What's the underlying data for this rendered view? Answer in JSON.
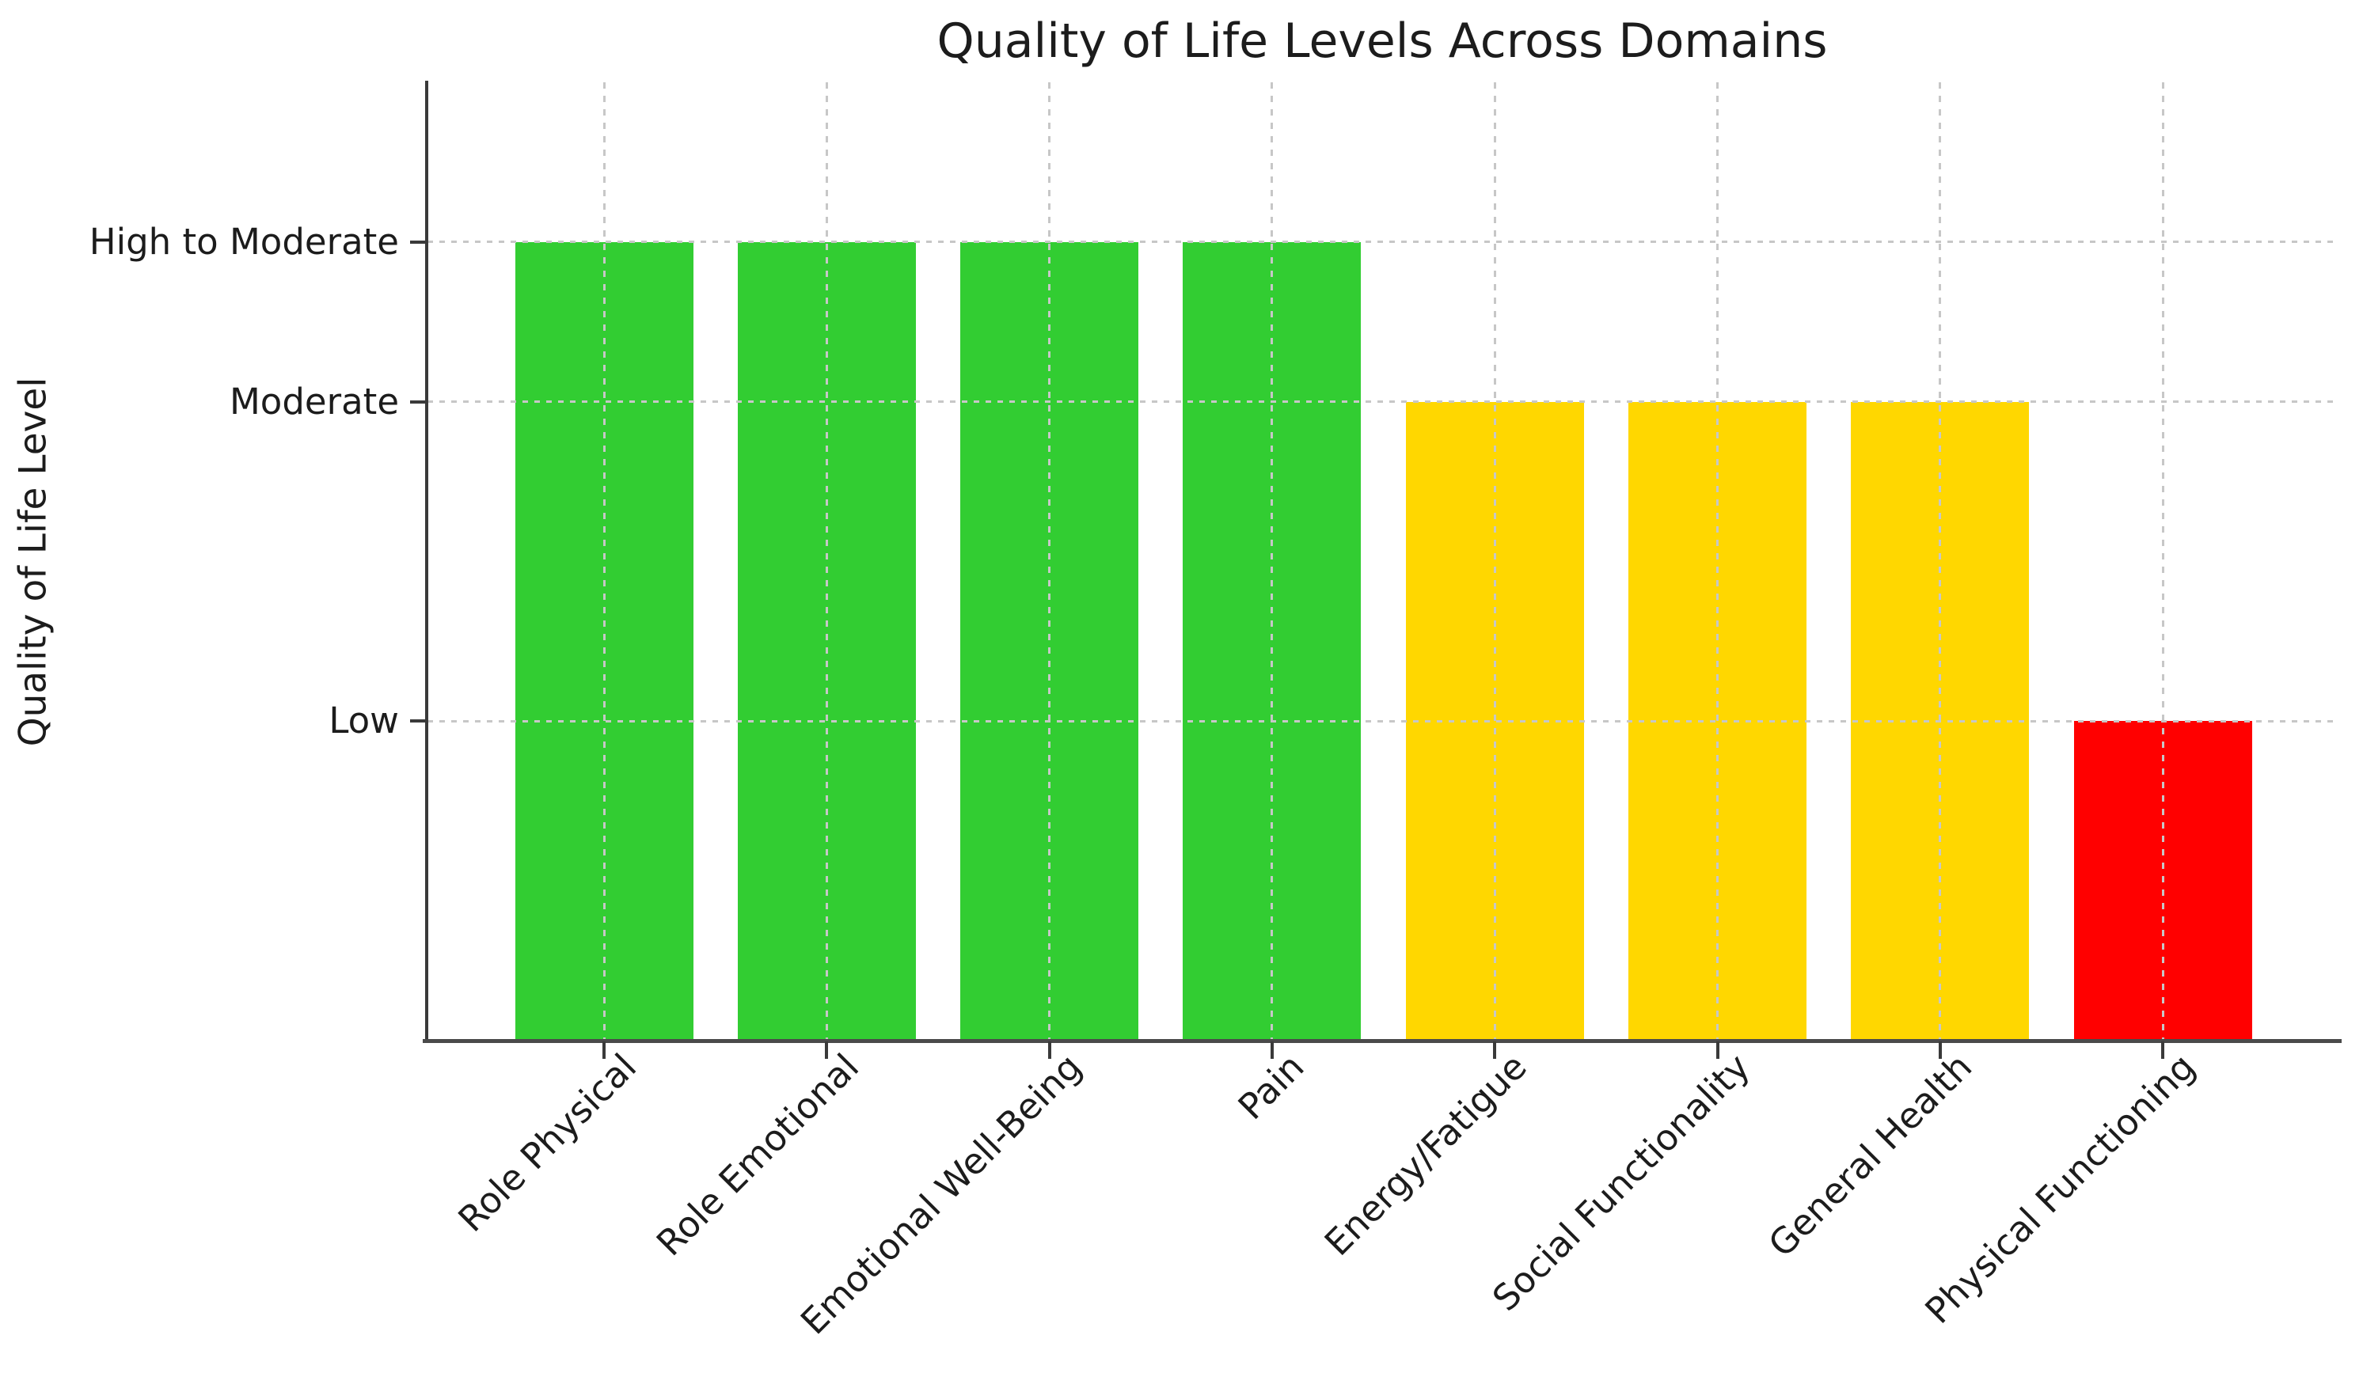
{
  "figure": {
    "background": "#ffffff",
    "text_color": "#1c1c1c",
    "spine_color": "#3a3a3a",
    "grid_color": "#c7c7c7"
  },
  "chart_data": {
    "type": "bar",
    "title": "Quality of Life Levels Across Domains",
    "xlabel": "",
    "ylabel": "Quality of Life Level",
    "categories": [
      "Role Physical",
      "Role Emotional",
      "Emotional Well-Being",
      "Pain",
      "Energy/Fatigue",
      "Social Functionality",
      "General Health",
      "Physical Functioning"
    ],
    "values": [
      2.5,
      2.5,
      2.5,
      2.5,
      2,
      2,
      2,
      1
    ],
    "levels": [
      "High to Moderate",
      "High to Moderate",
      "High to Moderate",
      "High to Moderate",
      "Moderate",
      "Moderate",
      "Moderate",
      "Low"
    ],
    "bar_colors": [
      "#32CD32",
      "#32CD32",
      "#32CD32",
      "#32CD32",
      "#FFD700",
      "#FFD700",
      "#FFD700",
      "#FF0000"
    ],
    "level_colors": {
      "High to Moderate": "#32CD32",
      "Moderate": "#FFD700",
      "Low": "#FF0000"
    },
    "yticks": [
      {
        "value": 1,
        "label": "Low"
      },
      {
        "value": 2,
        "label": "Moderate"
      },
      {
        "value": 2.5,
        "label": "High to Moderate"
      }
    ],
    "ylim": [
      0,
      3
    ],
    "grid": {
      "axis": "both",
      "linestyle": "dashed",
      "on": true
    },
    "legend": "none",
    "xtick_rotation_deg": 45
  }
}
